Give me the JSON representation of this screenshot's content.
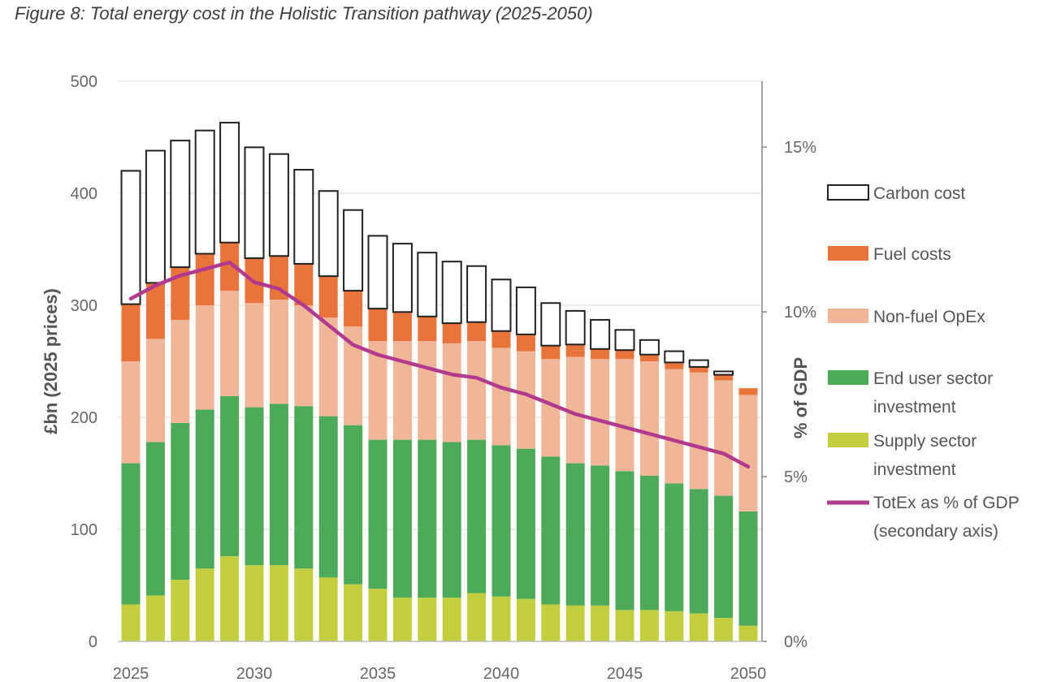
{
  "caption": "Figure 8: Total energy cost in the Holistic Transition pathway (2025-2050)",
  "chart_data": {
    "type": "bar",
    "stacked": true,
    "title": "Figure 8: Total energy cost in the Holistic Transition pathway (2025-2050)",
    "categories": [
      2025,
      2026,
      2027,
      2028,
      2029,
      2030,
      2031,
      2032,
      2033,
      2034,
      2035,
      2036,
      2037,
      2038,
      2039,
      2040,
      2041,
      2042,
      2043,
      2044,
      2045,
      2046,
      2047,
      2048,
      2049,
      2050
    ],
    "x_tick_labels": [
      "2025",
      "2030",
      "2035",
      "2040",
      "2045",
      "2050"
    ],
    "ylabel": "£bn (2025 prices)",
    "ylim": [
      0,
      500
    ],
    "y_ticks": [
      "0",
      "100",
      "200",
      "300",
      "400",
      "500"
    ],
    "y2label": "% of GDP",
    "y2lim": [
      0,
      0.17
    ],
    "y2_ticks": [
      "0%",
      "5%",
      "10%",
      "15%"
    ],
    "grid": true,
    "legend_position": "right",
    "series": [
      {
        "name": "Supply sector investment",
        "color": "#c3cf3f",
        "values": [
          33,
          41,
          55,
          65,
          76,
          68,
          68,
          65,
          57,
          51,
          47,
          39,
          39,
          39,
          43,
          40,
          38,
          33,
          32,
          32,
          28,
          28,
          27,
          25,
          21,
          14
        ]
      },
      {
        "name": "End user sector investment",
        "color": "#4daa59",
        "values": [
          126,
          137,
          140,
          142,
          143,
          141,
          144,
          145,
          144,
          142,
          133,
          141,
          141,
          139,
          137,
          135,
          134,
          132,
          127,
          125,
          124,
          120,
          114,
          111,
          109,
          102
        ]
      },
      {
        "name": "Non-fuel OpEx",
        "color": "#efb697",
        "values": [
          91,
          92,
          92,
          93,
          94,
          93,
          93,
          90,
          88,
          88,
          88,
          88,
          88,
          88,
          88,
          87,
          87,
          87,
          95,
          95,
          100,
          102,
          102,
          104,
          103,
          104
        ]
      },
      {
        "name": "Fuel costs",
        "color": "#e8733b",
        "values": [
          51,
          50,
          47,
          46,
          43,
          40,
          39,
          37,
          37,
          32,
          29,
          26,
          22,
          18,
          17,
          15,
          15,
          12,
          11,
          9,
          8,
          6,
          6,
          5,
          5,
          6
        ]
      },
      {
        "name": "Carbon cost",
        "color": "#ffffff",
        "values": [
          119,
          118,
          113,
          110,
          107,
          99,
          91,
          84,
          76,
          72,
          65,
          61,
          57,
          55,
          50,
          46,
          42,
          38,
          30,
          26,
          18,
          13,
          10,
          6,
          3,
          0
        ]
      }
    ],
    "line": {
      "name": "TotEx as % of GDP (secondary axis)",
      "color": "#b23a8e",
      "values": [
        0.104,
        0.108,
        0.111,
        0.113,
        0.115,
        0.109,
        0.107,
        0.102,
        0.096,
        0.09,
        0.087,
        0.085,
        0.083,
        0.081,
        0.08,
        0.077,
        0.075,
        0.072,
        0.069,
        0.067,
        0.065,
        0.063,
        0.061,
        0.059,
        0.057,
        0.053
      ]
    },
    "legend": [
      {
        "key": "carbon",
        "label_lines": [
          "Carbon cost"
        ]
      },
      {
        "key": "fuel",
        "label_lines": [
          "Fuel costs"
        ]
      },
      {
        "key": "opex",
        "label_lines": [
          "Non-fuel OpEx"
        ]
      },
      {
        "key": "enduser",
        "label_lines": [
          "End user sector",
          "investment"
        ]
      },
      {
        "key": "supply",
        "label_lines": [
          "Supply sector",
          "investment"
        ]
      },
      {
        "key": "line",
        "label_lines": [
          "TotEx as % of GDP",
          "(secondary axis)"
        ]
      }
    ]
  }
}
